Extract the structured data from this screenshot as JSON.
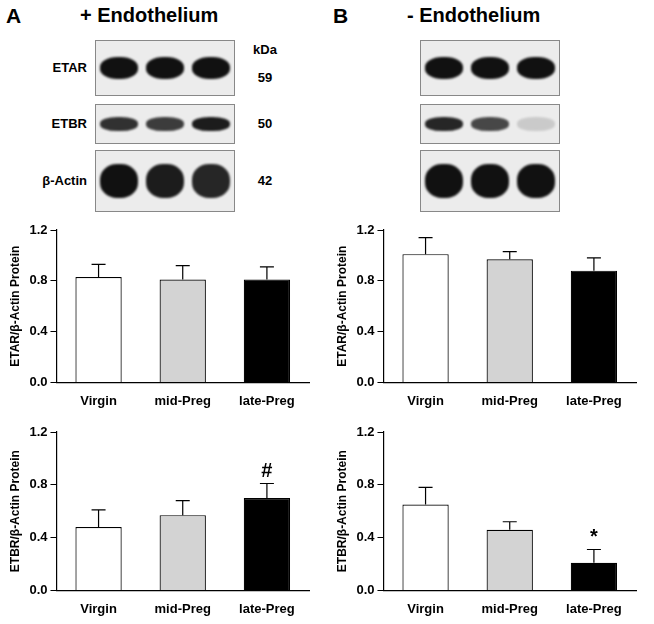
{
  "panels": [
    {
      "label": "A",
      "title": "+ Endothelium",
      "blot": {
        "lanes": 3,
        "unit": "kDa",
        "rows": [
          {
            "label": "ETAR",
            "kda": 59
          },
          {
            "label": "ETBR",
            "kda": 50
          },
          {
            "label": "β-Actin",
            "kda": 42
          }
        ]
      }
    },
    {
      "label": "B",
      "title": "- Endothelium",
      "blot": {
        "lanes": 3,
        "rows": [
          null,
          null,
          null
        ]
      }
    }
  ],
  "chart_data": [
    {
      "type": "bar",
      "ylabel": "ETAR/β-Actin Protein",
      "categories": [
        "Virgin",
        "mid-Preg",
        "late-Preg"
      ],
      "values": [
        0.83,
        0.81,
        0.81
      ],
      "errors": [
        0.1,
        0.11,
        0.1
      ],
      "colors": [
        "#ffffff",
        "#d3d3d3",
        "#000000"
      ],
      "ylim": [
        0,
        1.2
      ],
      "yticks": [
        {
          "value": 0,
          "label": "0.0"
        },
        {
          "value": 0.4,
          "label": "0.4"
        },
        {
          "value": 0.8,
          "label": "0.8"
        },
        {
          "value": 1.2,
          "label": "1.2"
        }
      ],
      "grid": false
    },
    {
      "type": "bar",
      "ylabel": "ETBR/β-Actin Protein",
      "categories": [
        "Virgin",
        "mid-Preg",
        "late-Preg"
      ],
      "values": [
        0.48,
        0.57,
        0.7
      ],
      "errors": [
        0.13,
        0.11,
        0.11
      ],
      "colors": [
        "#ffffff",
        "#d3d3d3",
        "#000000"
      ],
      "ylim": [
        0,
        1.2
      ],
      "yticks": [
        {
          "value": 0,
          "label": "0.0"
        },
        {
          "value": 0.4,
          "label": "0.4"
        },
        {
          "value": 0.8,
          "label": "0.8"
        },
        {
          "value": 1.2,
          "label": "1.2"
        }
      ],
      "annotations": [
        {
          "category": "late-Preg",
          "text": "#"
        }
      ],
      "grid": false
    },
    {
      "type": "bar",
      "ylabel": "ETAR/β-Actin Protein",
      "categories": [
        "Virgin",
        "mid-Preg",
        "late-Preg"
      ],
      "values": [
        1.01,
        0.97,
        0.88
      ],
      "errors": [
        0.13,
        0.06,
        0.1
      ],
      "colors": [
        "#ffffff",
        "#d3d3d3",
        "#000000"
      ],
      "ylim": [
        0,
        1.2
      ],
      "yticks": [
        {
          "value": 0,
          "label": "0.0"
        },
        {
          "value": 0.4,
          "label": "0.4"
        },
        {
          "value": 0.8,
          "label": "0.8"
        },
        {
          "value": 1.2,
          "label": "1.2"
        }
      ],
      "grid": false
    },
    {
      "type": "bar",
      "ylabel": "ETBR/β-Actin Protein",
      "categories": [
        "Virgin",
        "mid-Preg",
        "late-Preg"
      ],
      "values": [
        0.65,
        0.46,
        0.21
      ],
      "errors": [
        0.13,
        0.06,
        0.1
      ],
      "colors": [
        "#ffffff",
        "#d3d3d3",
        "#000000"
      ],
      "ylim": [
        0,
        1.2
      ],
      "yticks": [
        {
          "value": 0,
          "label": "0.0"
        },
        {
          "value": 0.4,
          "label": "0.4"
        },
        {
          "value": 0.8,
          "label": "0.8"
        },
        {
          "value": 1.2,
          "label": "1.2"
        }
      ],
      "annotations": [
        {
          "category": "late-Preg",
          "text": "*"
        }
      ],
      "grid": false
    }
  ]
}
